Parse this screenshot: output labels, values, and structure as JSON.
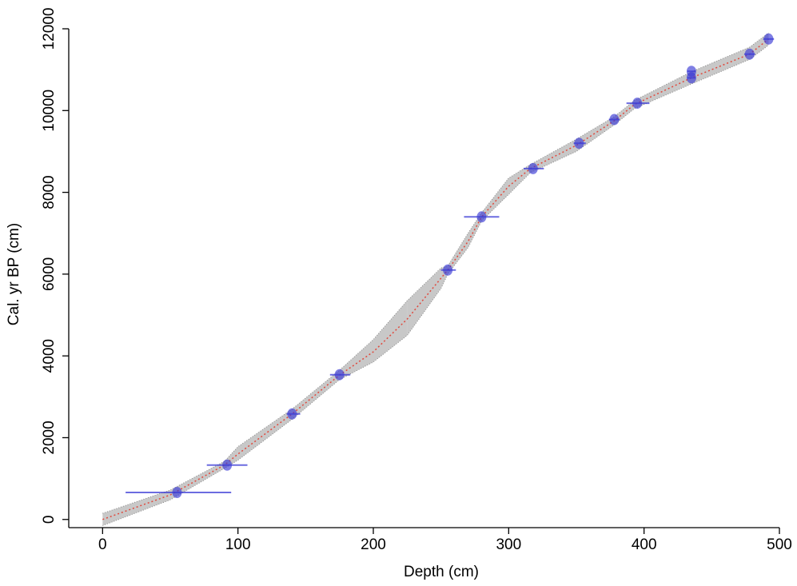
{
  "chart_data": {
    "type": "line",
    "x_label": "Depth (cm)",
    "y_label": "Cal. yr BP (cm)",
    "xlim": [
      -25,
      500
    ],
    "ylim": [
      -200,
      12000
    ],
    "xticks": [
      0,
      100,
      200,
      300,
      400,
      500
    ],
    "yticks": [
      0,
      2000,
      4000,
      6000,
      8000,
      10000,
      12000
    ],
    "x": [
      0,
      50,
      90,
      100,
      140,
      175,
      200,
      225,
      250,
      255,
      270,
      280,
      300,
      316,
      350,
      378,
      393,
      435,
      478,
      492
    ],
    "median": {
      "color": "#e0483c",
      "values": [
        0,
        600,
        1330,
        1600,
        2580,
        3530,
        4100,
        4900,
        5900,
        6100,
        6800,
        7400,
        8150,
        8580,
        9150,
        9750,
        10150,
        10800,
        11380,
        11750
      ]
    },
    "envelope": {
      "color": "#9a9a9a",
      "lower": [
        -150,
        480,
        1250,
        1450,
        2450,
        3420,
        3850,
        4500,
        5650,
        6000,
        6650,
        7300,
        7950,
        8480,
        9000,
        9650,
        10050,
        10650,
        11250,
        11600
      ],
      "upper": [
        150,
        720,
        1420,
        1780,
        2700,
        3650,
        4400,
        5350,
        6150,
        6200,
        7000,
        7500,
        8350,
        8680,
        9300,
        9850,
        10250,
        10950,
        11550,
        11900
      ]
    },
    "dates": {
      "color": "#3b3bd6",
      "x": [
        55,
        92,
        140,
        175,
        255,
        280,
        318,
        352,
        378,
        395,
        435,
        435,
        478,
        492
      ],
      "values": [
        660,
        1330,
        2580,
        3540,
        6100,
        7400,
        8580,
        9200,
        9780,
        10180,
        10960,
        10800,
        11380,
        11750
      ],
      "x_ranges": [
        [
          17,
          95
        ],
        [
          77,
          107
        ],
        [
          136,
          146
        ],
        [
          168,
          183
        ],
        [
          250,
          261
        ],
        [
          267,
          293
        ],
        [
          311,
          326
        ],
        [
          348,
          357
        ],
        [
          374,
          382
        ],
        [
          387,
          404
        ],
        [
          432,
          438
        ],
        [
          432,
          438
        ],
        [
          474,
          482
        ],
        [
          488,
          496
        ]
      ]
    }
  }
}
